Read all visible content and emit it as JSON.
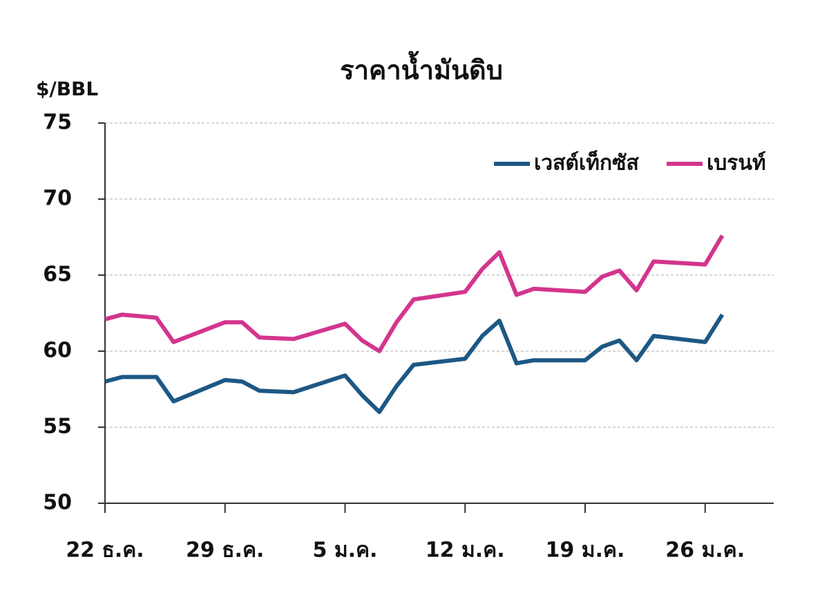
{
  "chart_data": {
    "type": "line",
    "title": "ราคาน้ำมันดิบ",
    "y_label": "$/BBL",
    "x": [
      0,
      1,
      2,
      3,
      4,
      7,
      8,
      9,
      11,
      14,
      15,
      16,
      17,
      18,
      21,
      22,
      23,
      24,
      25,
      28,
      29,
      30,
      31,
      32,
      35,
      36
    ],
    "xlim": [
      0,
      39
    ],
    "xticks": [
      {
        "value": 0,
        "label": "22 ธ.ค."
      },
      {
        "value": 7,
        "label": "29 ธ.ค."
      },
      {
        "value": 14,
        "label": "5 ม.ค."
      },
      {
        "value": 21,
        "label": "12 ม.ค."
      },
      {
        "value": 28,
        "label": "19 ม.ค."
      },
      {
        "value": 35,
        "label": "26 ม.ค."
      }
    ],
    "ylim": [
      50,
      75
    ],
    "yticks": [
      50,
      55,
      60,
      65,
      70,
      75
    ],
    "grid": true,
    "legend": "upper right",
    "series": [
      {
        "name": "เวสต์เท็กซัส",
        "color": "#1d5884",
        "values": [
          58.0,
          58.3,
          58.3,
          58.3,
          56.7,
          58.1,
          58.0,
          57.4,
          57.3,
          58.4,
          57.1,
          56.0,
          57.7,
          59.1,
          59.5,
          61.0,
          62.0,
          59.2,
          59.4,
          59.4,
          60.3,
          60.7,
          59.4,
          61.0,
          60.6,
          62.4
        ]
      },
      {
        "name": "เบรนท์",
        "color": "#d3358e",
        "values": [
          62.1,
          62.4,
          62.3,
          62.2,
          60.6,
          61.9,
          61.9,
          60.9,
          60.8,
          61.8,
          60.7,
          60.0,
          61.9,
          63.4,
          63.9,
          65.4,
          66.5,
          63.7,
          64.1,
          63.9,
          64.9,
          65.3,
          64.0,
          65.9,
          65.7,
          67.6
        ]
      }
    ]
  }
}
